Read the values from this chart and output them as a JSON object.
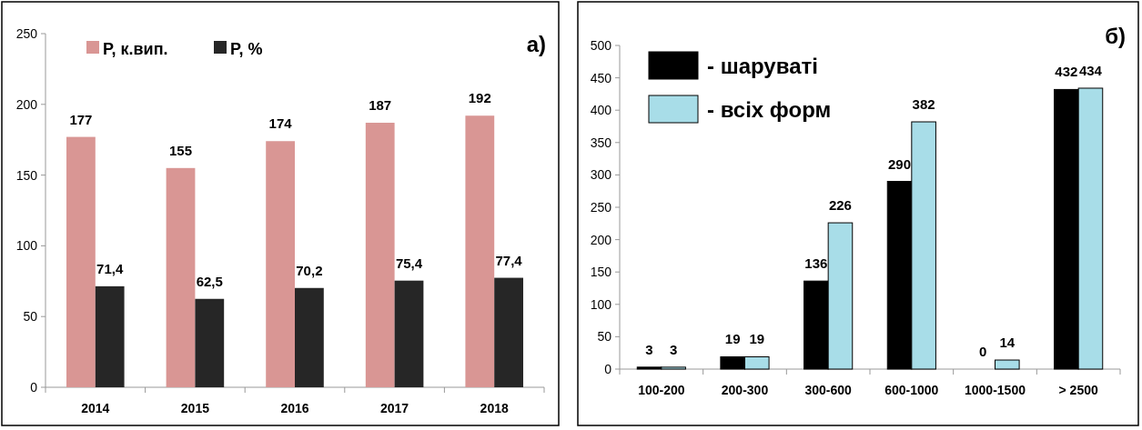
{
  "chart_data": [
    {
      "type": "bar",
      "title": "а)",
      "categories": [
        "2014",
        "2015",
        "2016",
        "2017",
        "2018"
      ],
      "series": [
        {
          "name": "Р, к.вип.",
          "color": "#d99694",
          "values": [
            177,
            155,
            174,
            187,
            192
          ],
          "value_labels": [
            "177",
            "155",
            "174",
            "187",
            "192"
          ]
        },
        {
          "name": "Р, %",
          "color": "#262626",
          "values": [
            71.4,
            62.5,
            70.2,
            75.4,
            77.4
          ],
          "value_labels": [
            "71,4",
            "62,5",
            "70,2",
            "75,4",
            "77,4"
          ]
        }
      ],
      "ylim": [
        0,
        250
      ],
      "yticks": [
        0,
        50,
        100,
        150,
        200,
        250
      ],
      "legend": "top left"
    },
    {
      "type": "bar",
      "title": "б)",
      "categories": [
        "100-200",
        "200-300",
        "300-600",
        "600-1000",
        "1000-1500",
        "> 2500"
      ],
      "series": [
        {
          "name": "- шаруваті",
          "color": "#000000",
          "values": [
            3,
            19,
            136,
            290,
            0,
            432
          ]
        },
        {
          "name": "- всіх форм",
          "color": "#a8dde8",
          "values": [
            3,
            19,
            226,
            382,
            14,
            434
          ]
        }
      ],
      "ylim": [
        0,
        500
      ],
      "yticks": [
        0,
        50,
        100,
        150,
        200,
        250,
        300,
        350,
        400,
        450,
        500
      ],
      "legend": "top left",
      "data_labels": true
    }
  ]
}
